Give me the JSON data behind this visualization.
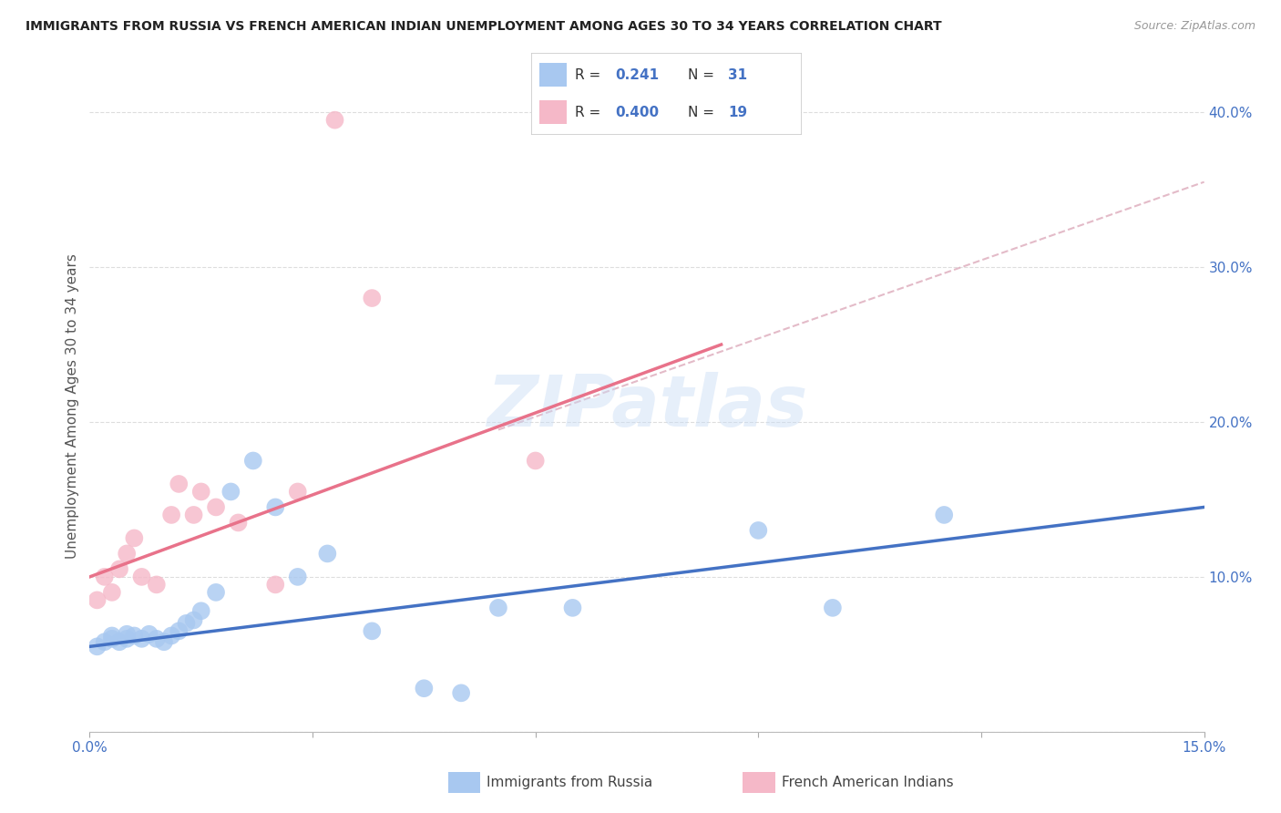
{
  "title": "IMMIGRANTS FROM RUSSIA VS FRENCH AMERICAN INDIAN UNEMPLOYMENT AMONG AGES 30 TO 34 YEARS CORRELATION CHART",
  "source": "Source: ZipAtlas.com",
  "ylabel": "Unemployment Among Ages 30 to 34 years",
  "xlim": [
    0,
    0.15
  ],
  "ylim": [
    0,
    0.42
  ],
  "xticks": [
    0.0,
    0.03,
    0.06,
    0.09,
    0.12,
    0.15
  ],
  "xticklabels": [
    "0.0%",
    "",
    "",
    "",
    "",
    "15.0%"
  ],
  "yticks": [
    0.0,
    0.1,
    0.2,
    0.3,
    0.4
  ],
  "yticklabels": [
    "",
    "10.0%",
    "20.0%",
    "30.0%",
    "40.0%"
  ],
  "blue_R": "0.241",
  "blue_N": "31",
  "pink_R": "0.400",
  "pink_N": "19",
  "blue_color": "#A8C8F0",
  "pink_color": "#F5B8C8",
  "blue_line_color": "#4472C4",
  "pink_line_color": "#E8728A",
  "dashed_line_color": "#DDAABB",
  "watermark": "ZIPatlas",
  "blue_scatter_x": [
    0.001,
    0.002,
    0.003,
    0.003,
    0.004,
    0.005,
    0.005,
    0.006,
    0.007,
    0.008,
    0.009,
    0.01,
    0.011,
    0.012,
    0.013,
    0.014,
    0.015,
    0.017,
    0.019,
    0.022,
    0.025,
    0.028,
    0.032,
    0.038,
    0.045,
    0.05,
    0.055,
    0.065,
    0.09,
    0.1,
    0.115
  ],
  "blue_scatter_y": [
    0.055,
    0.058,
    0.06,
    0.062,
    0.058,
    0.063,
    0.06,
    0.062,
    0.06,
    0.063,
    0.06,
    0.058,
    0.062,
    0.065,
    0.07,
    0.072,
    0.078,
    0.09,
    0.155,
    0.175,
    0.145,
    0.1,
    0.115,
    0.065,
    0.028,
    0.025,
    0.08,
    0.08,
    0.13,
    0.08,
    0.14
  ],
  "pink_scatter_x": [
    0.001,
    0.002,
    0.003,
    0.004,
    0.005,
    0.006,
    0.007,
    0.009,
    0.011,
    0.012,
    0.014,
    0.015,
    0.017,
    0.02,
    0.025,
    0.028,
    0.033,
    0.038,
    0.06
  ],
  "pink_scatter_y": [
    0.085,
    0.1,
    0.09,
    0.105,
    0.115,
    0.125,
    0.1,
    0.095,
    0.14,
    0.16,
    0.14,
    0.155,
    0.145,
    0.135,
    0.095,
    0.155,
    0.395,
    0.28,
    0.175
  ],
  "blue_trend_x": [
    0.0,
    0.15
  ],
  "blue_trend_y": [
    0.055,
    0.145
  ],
  "pink_trend_x": [
    0.0,
    0.085
  ],
  "pink_trend_y": [
    0.1,
    0.25
  ],
  "dashed_trend_x": [
    0.055,
    0.15
  ],
  "dashed_trend_y": [
    0.195,
    0.355
  ],
  "background_color": "#FFFFFF",
  "grid_color": "#DDDDDD",
  "legend_label_blue": "Immigrants from Russia",
  "legend_label_pink": "French American Indians"
}
